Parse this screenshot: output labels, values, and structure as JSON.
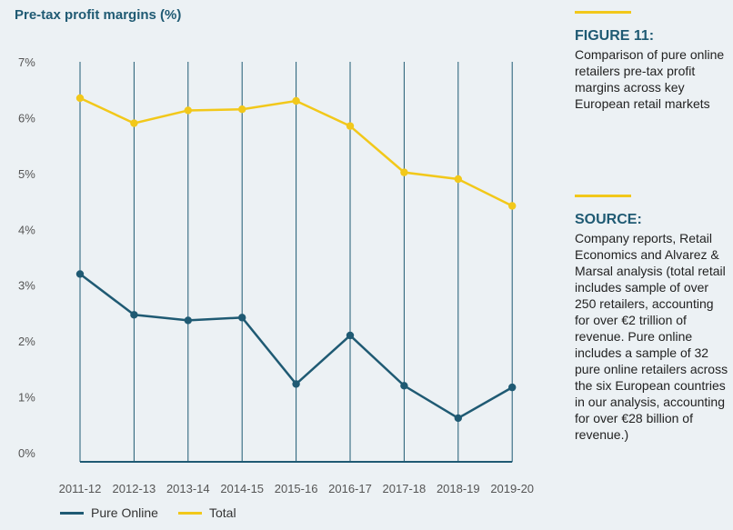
{
  "chart_data": {
    "type": "line",
    "title": "Pre-tax profit margins (%)",
    "categories": [
      "2011-12",
      "2012-13",
      "2013-14",
      "2014-15",
      "2015-16",
      "2016-17",
      "2017-18",
      "2018-19",
      "2019-20"
    ],
    "y_ticks": [
      "7%",
      "6%",
      "5%",
      "4%",
      "3%",
      "2%",
      "1%",
      "0%"
    ],
    "ylim": [
      0,
      7
    ],
    "grid": "vertical lines at categories",
    "legend_position": "bottom",
    "series": [
      {
        "name": "Pure Online",
        "color": "#1f5a73",
        "values": [
          3.2,
          2.47,
          2.37,
          2.42,
          1.23,
          2.1,
          1.2,
          0.62,
          1.17
        ]
      },
      {
        "name": "Total",
        "color": "#f2c81a",
        "values": [
          6.35,
          5.9,
          6.13,
          6.15,
          6.3,
          5.85,
          5.02,
          4.9,
          4.42
        ]
      }
    ]
  },
  "figure": {
    "heading": "FIGURE 11:",
    "text": "Comparison of pure online retailers pre-tax profit margins across key European retail markets"
  },
  "source": {
    "heading": "SOURCE:",
    "text": "Company reports, Retail Economics and Alvarez & Marsal analysis (total retail includes sample of over 250 retailers, accounting for over €2 trillion of revenue. Pure online includes a sample of 32 pure online retailers across the six European countries in our analysis, accounting for over €28 billion of revenue.)"
  },
  "colors": {
    "accent_yellow": "#f2c81a",
    "accent_teal": "#1f5a73",
    "background": "#ecf1f4"
  }
}
